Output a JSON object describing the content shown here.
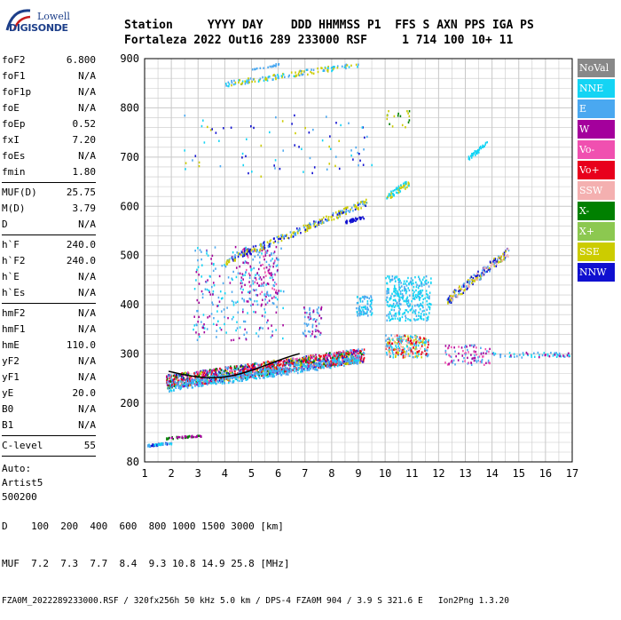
{
  "logo": {
    "line1": "Lowell",
    "line2": "DIGISONDE"
  },
  "header": {
    "labels": "Station     YYYY DAY    DDD HHMMSS P1  FFS S AXN PPS IGA PS",
    "values": "Fortaleza 2022 Out16 289 233000 RSF     1 714 100 10+ 11"
  },
  "params_a": [
    {
      "name": "foF2",
      "value": "6.800"
    },
    {
      "name": "foF1",
      "value": "N/A"
    },
    {
      "name": "foF1p",
      "value": "N/A"
    },
    {
      "name": "foE",
      "value": "N/A"
    },
    {
      "name": "foEp",
      "value": "0.52"
    },
    {
      "name": "fxI",
      "value": "7.20"
    },
    {
      "name": "foEs",
      "value": "N/A"
    },
    {
      "name": "fmin",
      "value": "1.80"
    }
  ],
  "params_b": [
    {
      "name": "MUF(D)",
      "value": "25.75"
    },
    {
      "name": "M(D)",
      "value": "3.79"
    },
    {
      "name": "D",
      "value": "N/A"
    }
  ],
  "params_c": [
    {
      "name": "h`F",
      "value": "240.0"
    },
    {
      "name": "h`F2",
      "value": "240.0"
    },
    {
      "name": "h`E",
      "value": "N/A"
    },
    {
      "name": "h`Es",
      "value": "N/A"
    }
  ],
  "params_d": [
    {
      "name": "hmF2",
      "value": "N/A"
    },
    {
      "name": "hmF1",
      "value": "N/A"
    },
    {
      "name": "hmE",
      "value": "110.0"
    },
    {
      "name": "yF2",
      "value": "N/A"
    },
    {
      "name": "yF1",
      "value": "N/A"
    },
    {
      "name": "yE",
      "value": "20.0"
    },
    {
      "name": "B0",
      "value": "N/A"
    },
    {
      "name": "B1",
      "value": "N/A"
    }
  ],
  "params_e": [
    {
      "name": "C-level",
      "value": "55"
    }
  ],
  "auto": [
    "Auto:",
    "Artist5",
    "500200"
  ],
  "legend": [
    {
      "label": "NoVal",
      "color": "#888888"
    },
    {
      "label": "NNE",
      "color": "#14d4f4"
    },
    {
      "label": "E",
      "color": "#4aa8f0"
    },
    {
      "label": "W",
      "color": "#a4009c"
    },
    {
      "label": "Vo-",
      "color": "#f050b0"
    },
    {
      "label": "Vo+",
      "color": "#e8001c"
    },
    {
      "label": "SSW",
      "color": "#f4b0b0"
    },
    {
      "label": "X-",
      "color": "#008000"
    },
    {
      "label": "X+",
      "color": "#8cc850"
    },
    {
      "label": "SSE",
      "color": "#cccc00"
    },
    {
      "label": "NNW",
      "color": "#1010d0"
    }
  ],
  "y_ticks": [
    "80",
    "200",
    "300",
    "400",
    "500",
    "600",
    "700",
    "800",
    "900"
  ],
  "x_ticks": [
    "1",
    "2",
    "3",
    "4",
    "5",
    "6",
    "7",
    "8",
    "9",
    "10",
    "11",
    "12",
    "13",
    "14",
    "15",
    "16",
    "17"
  ],
  "footer": {
    "d_row": "D    100  200  400  600  800 1000 1500 3000 [km]",
    "muf_row": "MUF  7.2  7.3  7.7  8.4  9.3 10.8 14.9 25.8 [MHz]",
    "file_row": "FZA0M_2022289233000.RSF / 320fx256h 50 kHz 5.0 km / DPS-4 FZA0M 904 / 3.9 S 321.6 E   Ion2Png 1.3.20"
  }
}
